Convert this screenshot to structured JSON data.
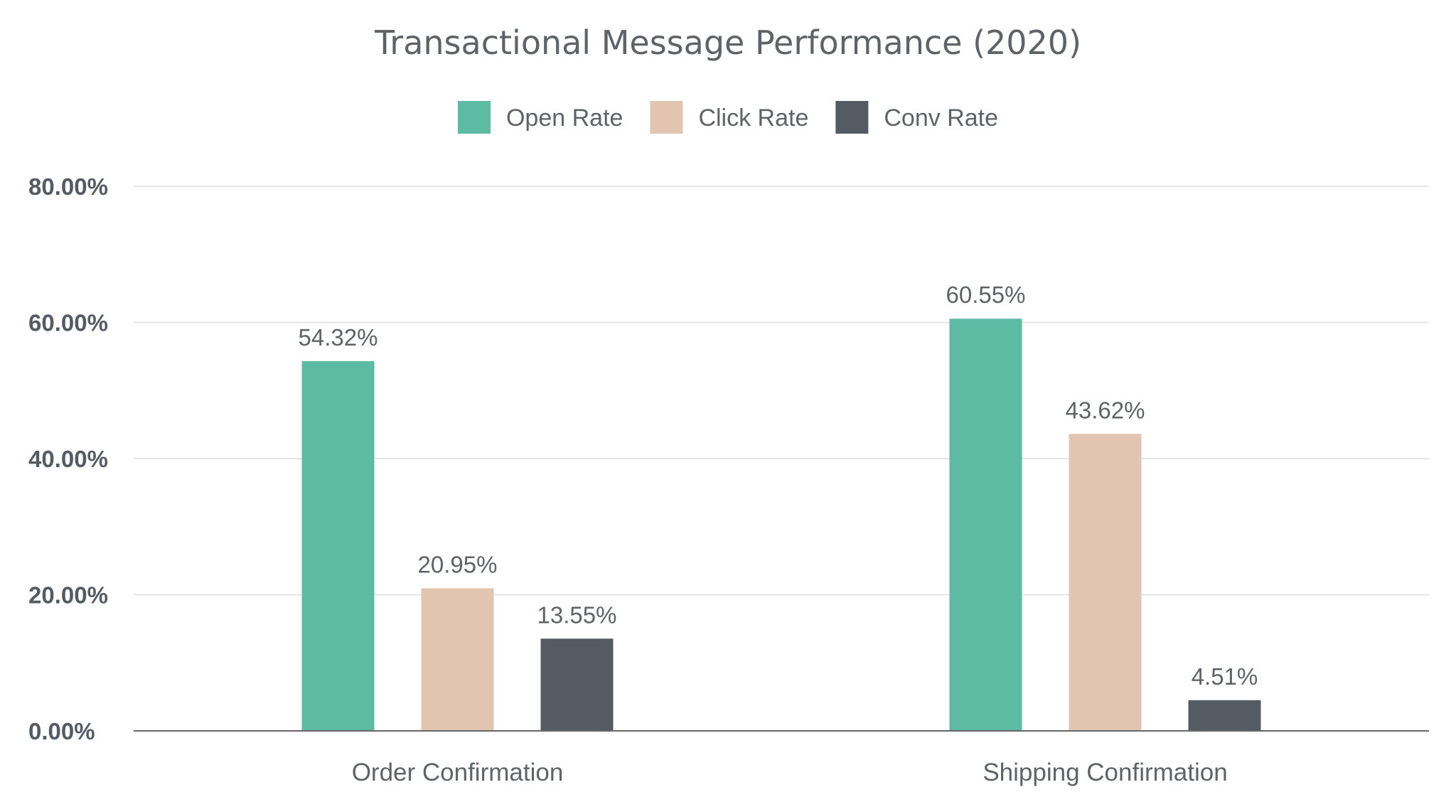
{
  "chart_data": {
    "type": "bar",
    "title": "Transactional Message Performance (2020)",
    "categories": [
      "Order Confirmation",
      "Shipping Confirmation"
    ],
    "series": [
      {
        "name": "Open Rate",
        "color": "#5ebba3",
        "values": [
          54.32,
          60.55
        ],
        "labels": [
          "54.32%",
          "60.55%"
        ]
      },
      {
        "name": "Click Rate",
        "color": "#e2c5b0",
        "values": [
          20.95,
          43.62
        ],
        "labels": [
          "20.95%",
          "43.62%"
        ]
      },
      {
        "name": "Conv Rate",
        "color": "#555b63",
        "values": [
          13.55,
          4.51
        ],
        "labels": [
          "13.55%",
          "4.51%"
        ]
      }
    ],
    "ylim": [
      0,
      80
    ],
    "yticks": [
      0,
      20,
      40,
      60,
      80
    ],
    "ytick_labels": [
      "0.00%",
      "20.00%",
      "40.00%",
      "60.00%",
      "80.00%"
    ],
    "legend_position": "top-center",
    "grid": true,
    "colors": {
      "gridline": "#e6e6e6",
      "axis": "#666666"
    }
  }
}
